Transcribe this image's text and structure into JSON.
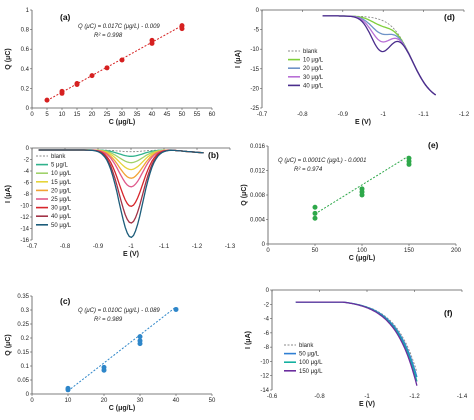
{
  "chart_data": [
    {
      "id": "a",
      "type": "scatter",
      "panel_label": "(a)",
      "xlabel": "C (μg/L)",
      "ylabel": "Q (μC)",
      "xlim": [
        0,
        60
      ],
      "ylim": [
        0,
        1
      ],
      "xticks": [
        "0",
        "5",
        "10",
        "15",
        "20",
        "25",
        "30",
        "35",
        "40",
        "45",
        "50",
        "55",
        "60"
      ],
      "yticks": [
        "0",
        "0.2",
        "0.4",
        "0.6",
        "0.8",
        "1"
      ],
      "equation": "Q (μC) = 0.017C (μg/L) - 0.009",
      "r2": "R² = 0.998",
      "marker_color": "#d62020",
      "points": [
        [
          5,
          0.08
        ],
        [
          10,
          0.15
        ],
        [
          10,
          0.17
        ],
        [
          15,
          0.24
        ],
        [
          15,
          0.25
        ],
        [
          20,
          0.33
        ],
        [
          25,
          0.41
        ],
        [
          30,
          0.49
        ],
        [
          40,
          0.66
        ],
        [
          40,
          0.69
        ],
        [
          50,
          0.81
        ],
        [
          50,
          0.84
        ]
      ],
      "fit": [
        [
          5,
          0.076
        ],
        [
          50,
          0.841
        ]
      ]
    },
    {
      "id": "b",
      "type": "line",
      "panel_label": "(b)",
      "xlabel": "E (V)",
      "ylabel": "I (μA)",
      "xlim": [
        -0.7,
        -1.3
      ],
      "ylim": [
        -16,
        0
      ],
      "xticks": [
        "-0.7",
        "-0.8",
        "-0.9",
        "-1",
        "-1.1",
        "-1.2",
        "-1.3"
      ],
      "yticks": [
        "0",
        "-2",
        "-4",
        "-6",
        "-8",
        "-10",
        "-12",
        "-14",
        "-16"
      ],
      "series": [
        {
          "name": "blank",
          "color": "#8a8a8a",
          "dashed": true,
          "peak": -0.3
        },
        {
          "name": "5 μg/L",
          "color": "#31b28c",
          "peak": -1.1
        },
        {
          "name": "10 μg/L",
          "color": "#a0d26a",
          "peak": -2.2
        },
        {
          "name": "15 μg/L",
          "color": "#e6d43a",
          "peak": -3.4
        },
        {
          "name": "20 μg/L",
          "color": "#f2a234",
          "peak": -4.9
        },
        {
          "name": "25 μg/L",
          "color": "#e05a8c",
          "peak": -6.4
        },
        {
          "name": "30 μg/L",
          "color": "#d7262b",
          "peak": -9.8
        },
        {
          "name": "40 μg/L",
          "color": "#a23246",
          "peak": -12.7
        },
        {
          "name": "50 μg/L",
          "color": "#1c5c7a",
          "peak": -15.2
        }
      ]
    },
    {
      "id": "c",
      "type": "scatter",
      "panel_label": "(c)",
      "xlabel": "C (μg/L)",
      "ylabel": "Q (μC)",
      "xlim": [
        0,
        50
      ],
      "ylim": [
        0,
        0.35
      ],
      "xticks": [
        "0",
        "10",
        "20",
        "30",
        "40",
        "50"
      ],
      "yticks": [
        "0",
        "0.05",
        "0.1",
        "0.15",
        "0.2",
        "0.25",
        "0.3",
        "0.35"
      ],
      "equation": "Q (μC) = 0.010C (μg/L) - 0.089",
      "r2": "R² = 0.989",
      "marker_color": "#2e86c9",
      "points": [
        [
          10,
          0.015
        ],
        [
          10,
          0.02
        ],
        [
          20,
          0.085
        ],
        [
          20,
          0.095
        ],
        [
          30,
          0.18
        ],
        [
          30,
          0.19
        ],
        [
          30,
          0.205
        ],
        [
          40,
          0.302
        ]
      ],
      "fit": [
        [
          10,
          0.011
        ],
        [
          40,
          0.311
        ]
      ]
    },
    {
      "id": "d",
      "type": "line",
      "panel_label": "(d)",
      "xlabel": "E (V)",
      "ylabel": "I (μA)",
      "xlim": [
        -0.7,
        -1.2
      ],
      "ylim": [
        -25,
        0
      ],
      "xticks": [
        "-0.7",
        "-0.8",
        "-0.9",
        "-1",
        "-1.1",
        "-1.2"
      ],
      "yticks": [
        "0",
        "-5",
        "-10",
        "-15",
        "-20",
        "-25"
      ],
      "series": [
        {
          "name": "blank",
          "color": "#8a8a8a",
          "dashed": true,
          "peak": 0
        },
        {
          "name": "10 μg/L",
          "color": "#7fcf3b",
          "peak": -1.5
        },
        {
          "name": "20 μg/L",
          "color": "#6f93c8",
          "peak": -3.5
        },
        {
          "name": "30 μg/L",
          "color": "#b86fd6",
          "peak": -5.5
        },
        {
          "name": "40 μg/L",
          "color": "#4a2d8c",
          "peak": -8
        }
      ]
    },
    {
      "id": "e",
      "type": "scatter",
      "panel_label": "(e)",
      "xlabel": "C (μg/L)",
      "ylabel": "Q (μC)",
      "xlim": [
        0,
        200
      ],
      "ylim": [
        0,
        0.016
      ],
      "xticks": [
        "0",
        "50",
        "100",
        "150",
        "200"
      ],
      "yticks": [
        "0",
        "0.004",
        "0.008",
        "0.012",
        "0.016"
      ],
      "equation": "Q (μC) = 0.0001C (μg/L) - 0.0001",
      "r2": "R² = 0.974",
      "marker_color": "#2ea84a",
      "points": [
        [
          50,
          0.0042
        ],
        [
          50,
          0.005
        ],
        [
          50,
          0.006
        ],
        [
          100,
          0.008
        ],
        [
          100,
          0.0085
        ],
        [
          100,
          0.009
        ],
        [
          150,
          0.013
        ],
        [
          150,
          0.0135
        ],
        [
          150,
          0.014
        ]
      ],
      "fit": [
        [
          50,
          0.0049
        ],
        [
          150,
          0.0144
        ]
      ]
    },
    {
      "id": "f",
      "type": "line",
      "panel_label": "(f)",
      "xlabel": "E (V)",
      "ylabel": "I (μA)",
      "xlim": [
        -0.6,
        -1.4
      ],
      "ylim": [
        -14,
        0
      ],
      "xticks": [
        "-0.6",
        "-0.8",
        "-1",
        "-1.2",
        "-1.4"
      ],
      "yticks": [
        "0",
        "-2",
        "-4",
        "-6",
        "-8",
        "-10",
        "-12",
        "-14"
      ],
      "series": [
        {
          "name": "blank",
          "color": "#8a8a8a",
          "dashed": true,
          "end": -11.5
        },
        {
          "name": "50 μg/L",
          "color": "#2f7fd3",
          "end": -12.2
        },
        {
          "name": "100 μg/L",
          "color": "#14b0a0",
          "end": -12.8
        },
        {
          "name": "150 μg/L",
          "color": "#6b2d9e",
          "end": -13.4
        }
      ]
    }
  ]
}
